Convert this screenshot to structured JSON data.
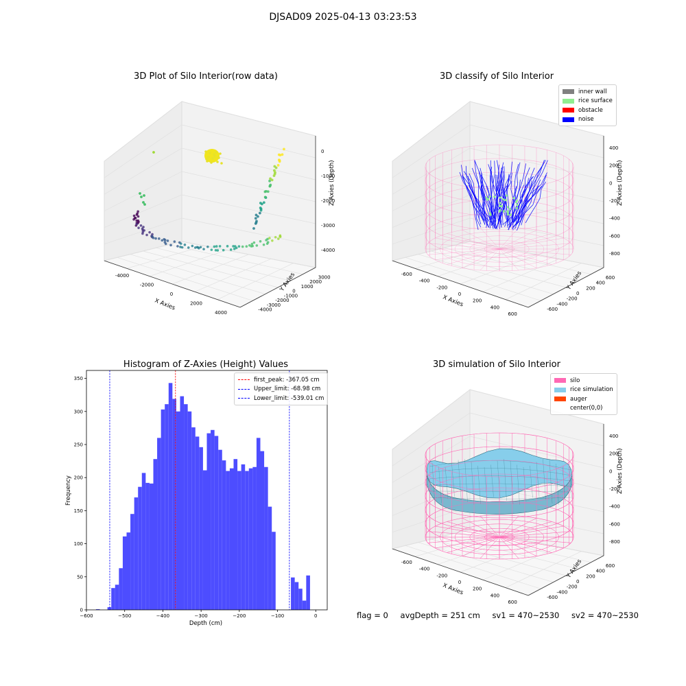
{
  "suptitle": "DJSAD09 2025-04-13 03:23:53",
  "footer": {
    "flag": "flag = 0",
    "avg_depth": "avgDepth = 251 cm",
    "sv1": "sv1 = 470~2530",
    "sv2": "sv2 = 470~2530"
  },
  "panels": {
    "raw": {
      "title": "3D Plot of Silo Interior(row data)",
      "xlabel": "X Axies",
      "ylabel": "Y Axies",
      "zlabel": "Z Axies (Depth)",
      "x_ticks": [
        "-4000",
        "-2000",
        "0",
        "2000",
        "4000"
      ],
      "y_ticks": [
        "-4000",
        "-3000",
        "-2000",
        "-1000",
        "0",
        "1000",
        "2000",
        "3000"
      ],
      "z_ticks": [
        "0",
        "-1000",
        "-2000",
        "-3000",
        "-4000"
      ],
      "colormap": "viridis"
    },
    "classify": {
      "title": "3D classify of Silo Interior",
      "xlabel": "X Axies",
      "ylabel": "Y Axies",
      "zlabel": "Z Axies (Depth)",
      "x_ticks": [
        "-600",
        "-400",
        "-200",
        "0",
        "200",
        "400",
        "600"
      ],
      "y_ticks": [
        "-600",
        "-400",
        "-200",
        "0",
        "200",
        "400",
        "600"
      ],
      "z_ticks": [
        "400",
        "200",
        "0",
        "-200",
        "-400",
        "-600",
        "-800"
      ],
      "legend": [
        {
          "label": "inner wall",
          "color": "#808080"
        },
        {
          "label": "rice surface",
          "color": "#90ee90"
        },
        {
          "label": "obstacle",
          "color": "#ff0000"
        },
        {
          "label": "noise",
          "color": "#0000ff"
        }
      ]
    },
    "simulation": {
      "title": "3D simulation of Silo Interior",
      "xlabel": "X Axies",
      "ylabel": "Y Axies",
      "zlabel": "Z Axies (Depth)",
      "x_ticks": [
        "-600",
        "-400",
        "-200",
        "0",
        "200",
        "400",
        "600"
      ],
      "y_ticks": [
        "-600",
        "-400",
        "-200",
        "0",
        "200",
        "400",
        "600"
      ],
      "z_ticks": [
        "400",
        "200",
        "0",
        "-200",
        "-400",
        "-600",
        "-800"
      ],
      "legend": [
        {
          "label": "silo",
          "color": "#ff69b4"
        },
        {
          "label": "rice simulation",
          "color": "#87ceeb"
        },
        {
          "label": "auger",
          "color": "#ff4500"
        },
        {
          "label": "center(0,0)",
          "color": "#ffffff"
        }
      ]
    }
  },
  "chart_data": {
    "type": "bar",
    "title": "Histogram of Z-Axies (Height) Values",
    "xlabel": "Depth (cm)",
    "ylabel": "Frequency",
    "xlim": [
      -600,
      30
    ],
    "ylim": [
      0,
      362
    ],
    "bar_color": "#4d4dff",
    "grid": false,
    "legend_position": "top-right",
    "x_ticks": [
      -600,
      -500,
      -400,
      -300,
      -200,
      -100,
      0
    ],
    "y_ticks": [
      0,
      50,
      100,
      150,
      200,
      250,
      300,
      350
    ],
    "bin_width": 10,
    "bin_starts": [
      -575,
      -565,
      -555,
      -545,
      -535,
      -525,
      -515,
      -505,
      -495,
      -485,
      -475,
      -465,
      -455,
      -445,
      -435,
      -425,
      -415,
      -405,
      -395,
      -385,
      -375,
      -365,
      -355,
      -345,
      -335,
      -325,
      -315,
      -305,
      -295,
      -285,
      -275,
      -265,
      -255,
      -245,
      -235,
      -225,
      -215,
      -205,
      -195,
      -185,
      -175,
      -165,
      -155,
      -145,
      -135,
      -125,
      -115,
      -105,
      -95,
      -85,
      -75,
      -65,
      -55,
      -45,
      -35,
      -25,
      -15,
      -5
    ],
    "values": [
      1,
      0,
      0,
      4,
      33,
      38,
      63,
      111,
      117,
      145,
      170,
      186,
      207,
      192,
      191,
      228,
      260,
      303,
      311,
      343,
      319,
      300,
      323,
      311,
      300,
      276,
      262,
      246,
      211,
      267,
      272,
      263,
      242,
      226,
      210,
      214,
      228,
      210,
      220,
      210,
      214,
      216,
      260,
      240,
      216,
      156,
      118,
      0,
      0,
      0,
      0,
      0,
      0,
      0,
      0,
      0,
      0,
      0
    ],
    "extra_bins": [
      {
        "start": -75,
        "value": 0
      },
      {
        "start": -65,
        "value": 49
      },
      {
        "start": -55,
        "value": 42
      },
      {
        "start": -45,
        "value": 32
      },
      {
        "start": -35,
        "value": 14
      },
      {
        "start": -25,
        "value": 52
      }
    ],
    "lines": [
      {
        "label": "first_peak: -367.05 cm",
        "x": -367.05,
        "color": "#ff0000"
      },
      {
        "label": "Upper_limit: -68.98 cm",
        "x": -68.98,
        "color": "#0000ff"
      },
      {
        "label": "Lower_limit: -539.01 cm",
        "x": -539.01,
        "color": "#0000ff"
      }
    ]
  }
}
